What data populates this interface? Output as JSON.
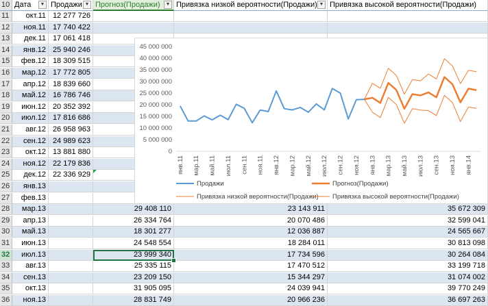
{
  "headers": {
    "row_num": "10",
    "date": "Дата",
    "sales": "Продажи",
    "forecast": "Прогноз(Продажи)",
    "low": "Привязка низкой вероятности(Продажи)",
    "high": "Привязка высокой вероятности(Продажи)"
  },
  "rows": [
    {
      "n": "11",
      "date": "окт.11",
      "sales": "12 277 726",
      "forecast": "",
      "low": "",
      "high": ""
    },
    {
      "n": "12",
      "date": "ноя.11",
      "sales": "17 740 422",
      "forecast": "",
      "low": "",
      "high": ""
    },
    {
      "n": "13",
      "date": "дек.11",
      "sales": "17 061 418",
      "forecast": "",
      "low": "",
      "high": ""
    },
    {
      "n": "14",
      "date": "янв.12",
      "sales": "25 940 246",
      "forecast": "",
      "low": "",
      "high": ""
    },
    {
      "n": "15",
      "date": "фев.12",
      "sales": "18 309 515",
      "forecast": "",
      "low": "",
      "high": ""
    },
    {
      "n": "16",
      "date": "мар.12",
      "sales": "17 772 805",
      "forecast": "",
      "low": "",
      "high": ""
    },
    {
      "n": "17",
      "date": "апр.12",
      "sales": "18 839 660",
      "forecast": "",
      "low": "",
      "high": ""
    },
    {
      "n": "18",
      "date": "май.12",
      "sales": "16 786 746",
      "forecast": "",
      "low": "",
      "high": ""
    },
    {
      "n": "19",
      "date": "июн.12",
      "sales": "20 352 392",
      "forecast": "",
      "low": "",
      "high": ""
    },
    {
      "n": "20",
      "date": "июл.12",
      "sales": "17 816 686",
      "forecast": "",
      "low": "",
      "high": ""
    },
    {
      "n": "21",
      "date": "авг.12",
      "sales": "26 958 963",
      "forecast": "",
      "low": "",
      "high": ""
    },
    {
      "n": "22",
      "date": "сен.12",
      "sales": "24 989 623",
      "forecast": "",
      "low": "",
      "high": ""
    },
    {
      "n": "23",
      "date": "окт.12",
      "sales": "13 881 880",
      "forecast": "",
      "low": "",
      "high": ""
    },
    {
      "n": "24",
      "date": "ноя.12",
      "sales": "22 179 836",
      "forecast": "",
      "low": "",
      "high": ""
    },
    {
      "n": "25",
      "date": "дек.12",
      "sales": "22 336 929",
      "forecast": "",
      "low": "",
      "high": ""
    },
    {
      "n": "26",
      "date": "янв.13",
      "sales": "",
      "forecast": "",
      "low": "",
      "high": ""
    },
    {
      "n": "27",
      "date": "фев.13",
      "sales": "",
      "forecast": "",
      "low": "",
      "high": ""
    },
    {
      "n": "28",
      "date": "мар.13",
      "sales": "",
      "forecast": "29 408 110",
      "low": "23 143 911",
      "high": "35 672 309"
    },
    {
      "n": "29",
      "date": "апр.13",
      "sales": "",
      "forecast": "26 334 764",
      "low": "20 070 486",
      "high": "32 599 041"
    },
    {
      "n": "30",
      "date": "май.13",
      "sales": "",
      "forecast": "18 301 277",
      "low": "12 036 887",
      "high": "24 565 667"
    },
    {
      "n": "31",
      "date": "июн.13",
      "sales": "",
      "forecast": "24 548 554",
      "low": "18 284 011",
      "high": "30 813 098"
    },
    {
      "n": "32",
      "date": "июл.13",
      "sales": "",
      "forecast": "23 999 340",
      "low": "17 734 596",
      "high": "30 264 084"
    },
    {
      "n": "33",
      "date": "авг.13",
      "sales": "",
      "forecast": "25 335 115",
      "low": "17 470 512",
      "high": "33 199 718"
    },
    {
      "n": "34",
      "date": "сен.13",
      "sales": "",
      "forecast": "23 209 150",
      "low": "15 344 297",
      "high": "31 074 002"
    },
    {
      "n": "35",
      "date": "окт.13",
      "sales": "",
      "forecast": "31 905 095",
      "low": "24 039 941",
      "high": "39 770 249"
    },
    {
      "n": "36",
      "date": "ноя.13",
      "sales": "",
      "forecast": "28 831 749",
      "low": "20 966 236",
      "high": "36 697 263"
    }
  ],
  "chart_data": {
    "type": "line",
    "yticks": [
      "45 000 000",
      "40 000 000",
      "35 000 000",
      "30 000 000",
      "25 000 000",
      "20 000 000",
      "15 000 000",
      "10 000 000",
      "5 000 000",
      "0"
    ],
    "ylim": [
      0,
      45000000
    ],
    "x": [
      "янв.11",
      "фев.11",
      "мар.11",
      "апр.11",
      "май.11",
      "июн.11",
      "июл.11",
      "авг.11",
      "сен.11",
      "окт.11",
      "ноя.11",
      "дек.11",
      "янв.12",
      "фев.12",
      "мар.12",
      "апр.12",
      "май.12",
      "июн.12",
      "июл.12",
      "авг.12",
      "сен.12",
      "окт.12",
      "ноя.12",
      "дек.12",
      "янв.13",
      "фев.13",
      "мар.13",
      "апр.13",
      "май.13",
      "июн.13",
      "июл.13",
      "авг.13",
      "сен.13",
      "окт.13",
      "ноя.13",
      "дек.13",
      "янв.14",
      "фев.14"
    ],
    "xtick_labels": [
      "янв.11",
      "мар.11",
      "май.11",
      "июл.11",
      "сен.11",
      "ноя.11",
      "янв.12",
      "мар.12",
      "май.12",
      "июл.12",
      "сен.12",
      "ноя.12",
      "янв.13",
      "мар.13",
      "май.13",
      "июл.13",
      "сен.13",
      "ноя.13",
      "янв.14"
    ],
    "series": [
      {
        "name": "Продажи",
        "color": "#5b9bd5",
        "width": 2,
        "values": [
          19500000,
          13000000,
          13000000,
          15200000,
          13500000,
          15500000,
          13600000,
          20200000,
          18500000,
          12277726,
          17740422,
          17061418,
          25940246,
          18309515,
          17772805,
          18839660,
          16786746,
          20352392,
          17816686,
          26958963,
          24989623,
          13881880,
          22179836,
          22336929,
          null,
          null,
          null,
          null,
          null,
          null,
          null,
          null,
          null,
          null,
          null,
          null,
          null,
          null
        ]
      },
      {
        "name": "Прогноз(Продажи)",
        "color": "#ed7d31",
        "width": 2.5,
        "values": [
          null,
          null,
          null,
          null,
          null,
          null,
          null,
          null,
          null,
          null,
          null,
          null,
          null,
          null,
          null,
          null,
          null,
          null,
          null,
          null,
          null,
          null,
          null,
          22336929,
          23000000,
          20800000,
          29408110,
          26334764,
          18301277,
          24548554,
          23999340,
          25335115,
          23209150,
          31905095,
          28831749,
          21000000,
          26900000,
          26300000
        ]
      },
      {
        "name": "Привязка низкой вероятности(Продажи)",
        "color": "#ed7d31",
        "width": 1,
        "values": [
          null,
          null,
          null,
          null,
          null,
          null,
          null,
          null,
          null,
          null,
          null,
          null,
          null,
          null,
          null,
          null,
          null,
          null,
          null,
          null,
          null,
          null,
          null,
          22336929,
          16800000,
          14500000,
          23143911,
          20070486,
          12036887,
          18284011,
          17734596,
          17470512,
          15344297,
          24039941,
          20966236,
          12800000,
          19000000,
          18400000
        ]
      },
      {
        "name": "Привязка высокой вероятности(Продажи)",
        "color": "#ed7d31",
        "width": 1,
        "values": [
          null,
          null,
          null,
          null,
          null,
          null,
          null,
          null,
          null,
          null,
          null,
          null,
          null,
          null,
          null,
          null,
          null,
          null,
          null,
          null,
          null,
          null,
          null,
          22336929,
          29200000,
          27100000,
          35672309,
          32599041,
          24565667,
          30813098,
          30264084,
          33199718,
          31074002,
          39770249,
          36697263,
          29100000,
          34800000,
          34200000
        ]
      }
    ]
  }
}
